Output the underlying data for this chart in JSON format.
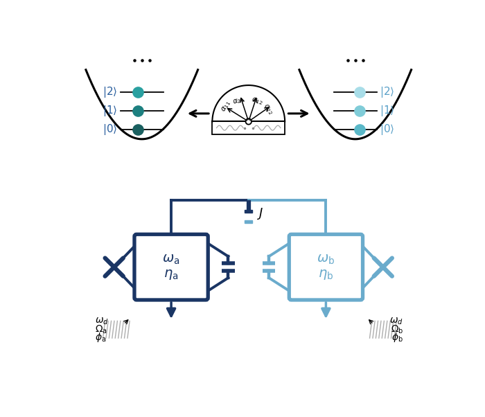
{
  "color_dark": "#1a3564",
  "color_mid": "#1e5f8a",
  "color_light": "#6aabcc",
  "color_lighter": "#85c4d4",
  "color_teal_d1": "#1a6060",
  "color_teal_d2": "#1d8080",
  "color_teal_d3": "#2aa0a0",
  "color_teal_l1": "#5ab8c8",
  "color_teal_l2": "#80ccd8",
  "color_teal_l3": "#a8dde8",
  "bg": "#ffffff",
  "label_color_dark": "#2a5f9e",
  "label_color_light": "#5aa0c8"
}
